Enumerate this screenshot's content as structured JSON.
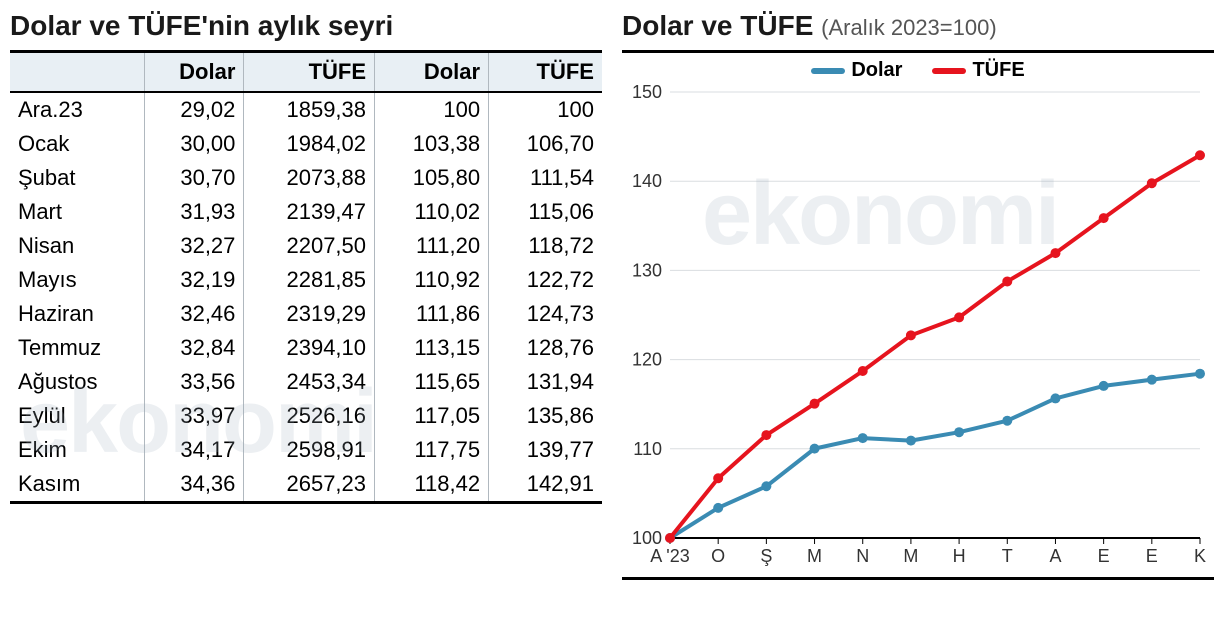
{
  "table": {
    "title": "Dolar ve TÜFE'nin aylık seyri",
    "columns": [
      "",
      "Dolar",
      "TÜFE",
      "Dolar",
      "TÜFE"
    ],
    "col_align": [
      "left",
      "right",
      "right",
      "right",
      "right"
    ],
    "header_bg": "#e8eff4",
    "border_color": "#000000",
    "grid_color": "#b0b8bf",
    "font_size_header": 22,
    "font_size_cell": 22,
    "rows": [
      [
        "Ara.23",
        "29,02",
        "1859,38",
        "100",
        "100"
      ],
      [
        "Ocak",
        "30,00",
        "1984,02",
        "103,38",
        "106,70"
      ],
      [
        "Şubat",
        "30,70",
        "2073,88",
        "105,80",
        "111,54"
      ],
      [
        "Mart",
        "31,93",
        "2139,47",
        "110,02",
        "115,06"
      ],
      [
        "Nisan",
        "32,27",
        "2207,50",
        "111,20",
        "118,72"
      ],
      [
        "Mayıs",
        "32,19",
        "2281,85",
        "110,92",
        "122,72"
      ],
      [
        "Haziran",
        "32,46",
        "2319,29",
        "111,86",
        "124,73"
      ],
      [
        "Temmuz",
        "32,84",
        "2394,10",
        "113,15",
        "128,76"
      ],
      [
        "Ağustos",
        "33,56",
        "2453,34",
        "115,65",
        "131,94"
      ],
      [
        "Eylül",
        "33,97",
        "2526,16",
        "117,05",
        "135,86"
      ],
      [
        "Ekim",
        "34,17",
        "2598,91",
        "117,75",
        "139,77"
      ],
      [
        "Kasım",
        "34,36",
        "2657,23",
        "118,42",
        "142,91"
      ]
    ]
  },
  "chart": {
    "title_main": "Dolar ve TÜFE",
    "title_sub": "(Aralık 2023=100)",
    "type": "line",
    "background_color": "#ffffff",
    "ylim": [
      100,
      150
    ],
    "ytick_step": 10,
    "yticks": [
      100,
      110,
      120,
      130,
      140,
      150
    ],
    "x_labels": [
      "A '23",
      "O",
      "Ş",
      "M",
      "N",
      "M",
      "H",
      "T",
      "A",
      "E",
      "E",
      "K"
    ],
    "grid_color": "#dadde0",
    "axis_color": "#000000",
    "tick_font_size": 18,
    "line_width": 4,
    "marker_radius": 5,
    "legend_position": "top-center",
    "series": [
      {
        "name": "Dolar",
        "color": "#3a8bb3",
        "values": [
          100,
          103.38,
          105.8,
          110.02,
          111.2,
          110.92,
          111.86,
          113.15,
          115.65,
          117.05,
          117.75,
          118.42
        ]
      },
      {
        "name": "TÜFE",
        "color": "#e6141e",
        "values": [
          100,
          106.7,
          111.54,
          115.06,
          118.72,
          122.72,
          124.73,
          128.76,
          131.94,
          135.86,
          139.77,
          142.91
        ]
      }
    ]
  },
  "watermark": {
    "text": "ekonomi",
    "color_rgba": "rgba(160,175,190,0.20)",
    "font_size": 90
  }
}
